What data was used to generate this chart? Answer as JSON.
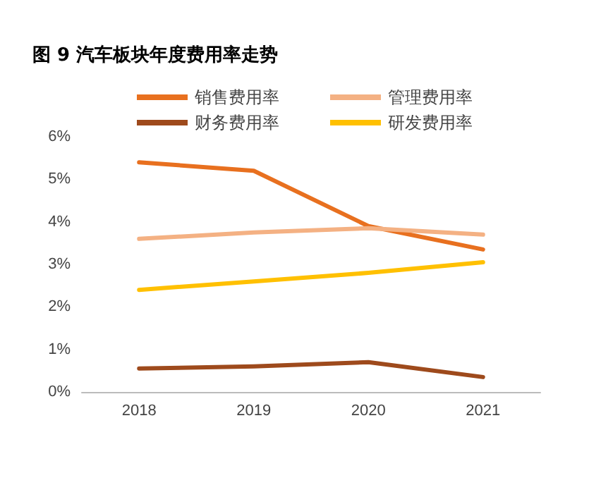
{
  "chart_data": {
    "type": "line",
    "title": "图 9 汽车板块年度费用率走势",
    "categories": [
      "2018",
      "2019",
      "2020",
      "2021"
    ],
    "series": [
      {
        "name": "销售费用率",
        "color": "#e8701f",
        "values": [
          5.4,
          5.2,
          3.9,
          3.35
        ]
      },
      {
        "name": "管理费用率",
        "color": "#f4b183",
        "values": [
          3.6,
          3.75,
          3.85,
          3.7
        ]
      },
      {
        "name": "财务费用率",
        "color": "#9e4a1c",
        "values": [
          0.55,
          0.6,
          0.7,
          0.35
        ]
      },
      {
        "name": "研发费用率",
        "color": "#ffc000",
        "values": [
          2.4,
          2.6,
          2.8,
          3.05
        ]
      }
    ],
    "ylim": [
      0,
      6
    ],
    "yticks": [
      {
        "value": 0,
        "label": "0%"
      },
      {
        "value": 1,
        "label": "1%"
      },
      {
        "value": 2,
        "label": "2%"
      },
      {
        "value": 3,
        "label": "3%"
      },
      {
        "value": 4,
        "label": "4%"
      },
      {
        "value": 5,
        "label": "5%"
      },
      {
        "value": 6,
        "label": "6%"
      }
    ],
    "legend": "top",
    "marker": "none",
    "line_style": "solid",
    "grid": false
  }
}
